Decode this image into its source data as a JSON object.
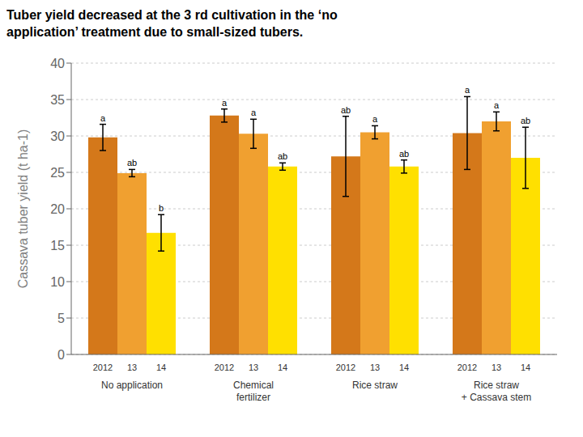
{
  "chart_data": {
    "type": "bar",
    "title": "Tuber yield decreased at the 3 rd cultivation in the ‘no\napplication’ treatment due to small-sized tubers.",
    "ylabel": "Cassava tuber yield (t ha-1)",
    "categories": [
      "No application",
      "Chemical\nfertilizer",
      "Rice straw",
      "Rice straw\n+ Cassava stem"
    ],
    "series": [
      {
        "name": "2012",
        "color": "#D4781A",
        "values": [
          29.8,
          32.8,
          27.2,
          30.4
        ],
        "errors": [
          1.8,
          0.9,
          5.5,
          5.0
        ],
        "stat_labels": [
          "a",
          "a",
          "ab",
          "a"
        ]
      },
      {
        "name": "13",
        "color": "#F0A030",
        "values": [
          24.9,
          30.3,
          30.5,
          32.0
        ],
        "errors": [
          0.5,
          2.0,
          0.9,
          1.3
        ],
        "stat_labels": [
          "ab",
          "a",
          "a",
          "a"
        ]
      },
      {
        "name": "14",
        "color": "#FFE000",
        "values": [
          16.7,
          25.8,
          25.8,
          27.0
        ],
        "errors": [
          2.5,
          0.5,
          0.9,
          4.2
        ],
        "stat_labels": [
          "b",
          "ab",
          "ab",
          "ab"
        ]
      }
    ],
    "ylim": [
      0,
      40
    ],
    "yticks": [
      0,
      5,
      10,
      15,
      20,
      25,
      30,
      35,
      40
    ],
    "grid": true
  }
}
